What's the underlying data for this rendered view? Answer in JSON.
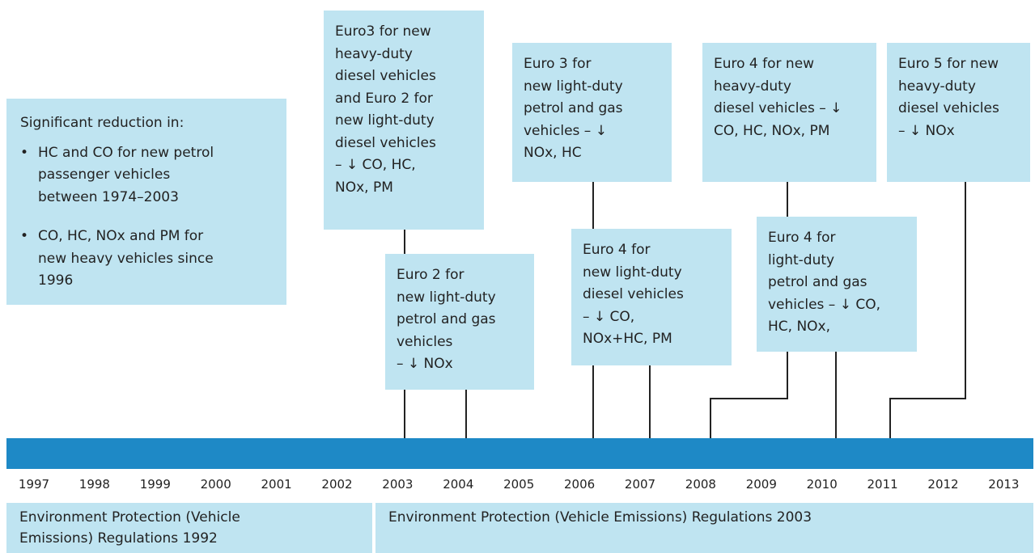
{
  "summary": {
    "heading": "Significant reduction in:",
    "bullets": [
      [
        "HC and CO for new petrol",
        "passenger vehicles",
        "between 1974–2003"
      ],
      [
        "CO, HC, NOx and PM for",
        "new heavy vehicles since",
        "1996"
      ]
    ]
  },
  "boxes": [
    {
      "lines": [
        "Euro3 for new",
        "heavy-duty",
        "diesel vehicles",
        "and Euro 2 for",
        "new light-duty",
        "diesel vehicles",
        "– ↓ CO, HC,",
        "NOx, PM"
      ]
    },
    {
      "lines": [
        "Euro 2 for",
        "new light-duty",
        "petrol and gas",
        "vehicles",
        "– ↓ NOx"
      ]
    },
    {
      "lines": [
        "Euro 3 for",
        "new light-duty",
        "petrol and gas",
        "vehicles – ↓",
        "NOx, HC"
      ]
    },
    {
      "lines": [
        "Euro 4 for",
        "new light-duty",
        "diesel vehicles",
        "– ↓ CO,",
        "NOx+HC, PM"
      ]
    },
    {
      "lines": [
        "Euro 4 for new",
        "heavy-duty",
        "diesel vehicles – ↓",
        "CO, HC, NOx, PM"
      ]
    },
    {
      "lines": [
        "Euro 4 for",
        "light-duty",
        "petrol and gas",
        "vehicles – ↓ CO,",
        "HC, NOx,"
      ]
    },
    {
      "lines": [
        "Euro 5 for new",
        "heavy-duty",
        "diesel vehicles",
        "– ↓ NOx"
      ]
    }
  ],
  "years": [
    "1997",
    "1998",
    "1999",
    "2000",
    "2001",
    "2002",
    "2003",
    "2004",
    "2005",
    "2006",
    "2007",
    "2008",
    "2009",
    "2010",
    "2011",
    "2012",
    "2013"
  ],
  "regulations": [
    {
      "lines": [
        "Environment Protection (Vehicle",
        "Emissions) Regulations 1992"
      ]
    },
    {
      "lines": [
        "Environment Protection (Vehicle Emissions) Regulations 2003"
      ]
    }
  ]
}
